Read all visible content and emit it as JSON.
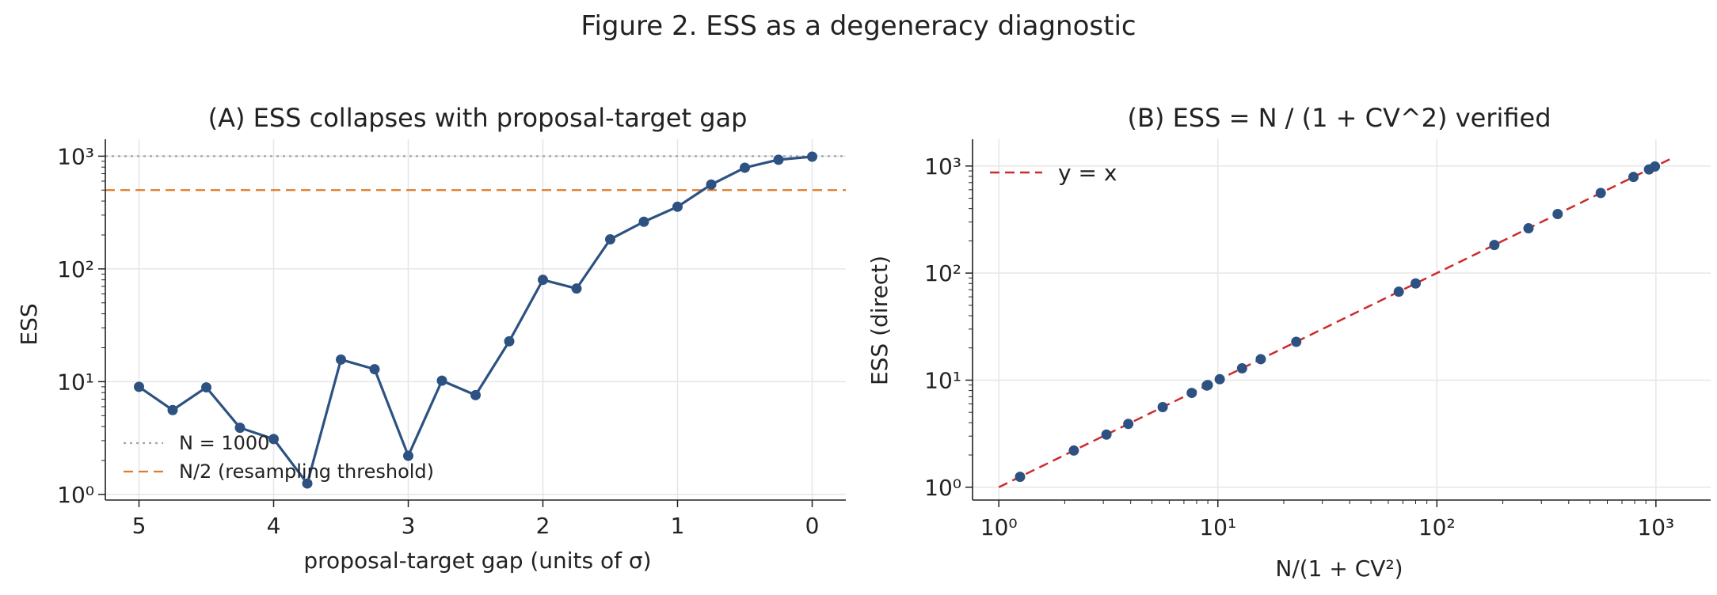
{
  "figure_title": "Figure 2. ESS as a degeneracy diagnostic",
  "chart_data": [
    {
      "type": "line",
      "title": "(A) ESS collapses with proposal-target gap",
      "xlabel": "proposal-target gap (units of σ)",
      "ylabel": "ESS",
      "x_axis_reversed": true,
      "xlim": [
        5.25,
        -0.25
      ],
      "ylim_log10": [
        -0.05,
        3.15
      ],
      "yscale": "log",
      "grid": true,
      "legend_position": "lower-left",
      "x_ticks": [
        "5",
        "4",
        "3",
        "2",
        "1",
        "0"
      ],
      "y_ticks": [
        "10⁰",
        "10¹",
        "10²",
        "10³"
      ],
      "series": [
        {
          "color": "#2d5282",
          "x": [
            5.0,
            4.75,
            4.5,
            4.25,
            4.0,
            3.75,
            3.5,
            3.25,
            3.0,
            2.75,
            2.5,
            2.25,
            2.0,
            1.75,
            1.5,
            1.25,
            1.0,
            0.75,
            0.5,
            0.25,
            0.0
          ],
          "y": [
            9.0,
            5.6,
            8.9,
            3.9,
            3.1,
            1.25,
            15.7,
            12.9,
            2.2,
            10.2,
            7.6,
            22.8,
            80.0,
            67.0,
            183.0,
            262.0,
            356.0,
            560.0,
            790.0,
            930.0,
            990.0
          ]
        }
      ],
      "reference_lines": [
        {
          "name": "N = 1000",
          "y": 1000,
          "style": "dotted",
          "color": "#a0a4ad"
        },
        {
          "name": "N/2 (resampling threshold)",
          "y": 500,
          "style": "dashed",
          "color": "#e07b2a"
        }
      ]
    },
    {
      "type": "scatter",
      "title": "(B) ESS = N / (1 + CV^2) verified",
      "xlabel": "N/(1 + CV²)",
      "ylabel": "ESS (direct)",
      "xscale": "log",
      "yscale": "log",
      "xlim_log10": [
        -0.12,
        3.25
      ],
      "ylim_log10": [
        -0.12,
        3.25
      ],
      "grid": true,
      "legend_position": "top-left",
      "x_ticks": [
        "10⁰",
        "10¹",
        "10²",
        "10³"
      ],
      "y_ticks": [
        "10⁰",
        "10¹",
        "10²",
        "10³"
      ],
      "series": [
        {
          "color": "#2d5282",
          "x": [
            1.25,
            2.2,
            3.1,
            3.9,
            5.6,
            7.6,
            8.9,
            9.0,
            10.2,
            12.9,
            15.7,
            22.8,
            67.0,
            80.0,
            183.0,
            262.0,
            356.0,
            560.0,
            790.0,
            930.0,
            990.0
          ],
          "y": [
            1.25,
            2.2,
            3.1,
            3.9,
            5.6,
            7.6,
            8.9,
            9.0,
            10.2,
            12.9,
            15.7,
            22.8,
            67.0,
            80.0,
            183.0,
            262.0,
            356.0,
            560.0,
            790.0,
            930.0,
            990.0
          ]
        }
      ],
      "reference_lines": [
        {
          "name": "y = x",
          "x": [
            1,
            1200
          ],
          "y": [
            1,
            1200
          ],
          "style": "dashed",
          "color": "#cc2b2b"
        }
      ]
    }
  ]
}
